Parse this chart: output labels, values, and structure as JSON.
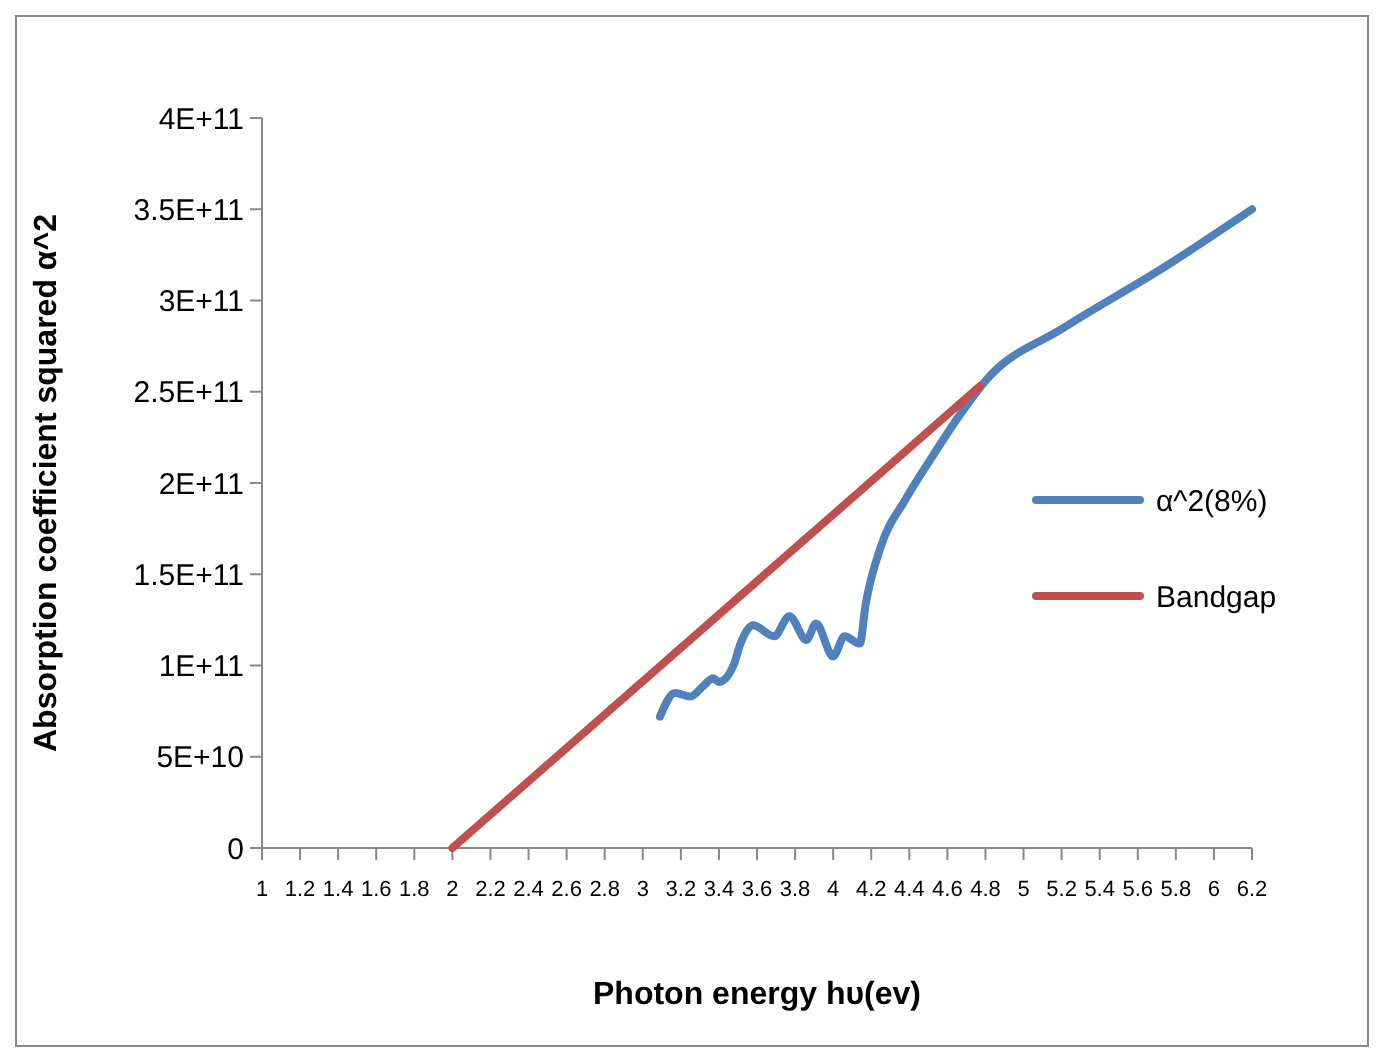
{
  "chart_data": {
    "type": "line",
    "xlabel": "Photon energy hυ(ev)",
    "ylabel": "Absorption coefficient squared α^2",
    "xlim": [
      1,
      6.2
    ],
    "xticks": [
      1,
      1.2,
      1.4,
      1.6,
      1.8,
      2,
      2.2,
      2.4,
      2.6,
      2.8,
      3,
      3.2,
      3.4,
      3.6,
      3.8,
      4,
      4.2,
      4.4,
      4.6,
      4.8,
      5,
      5.2,
      5.4,
      5.6,
      5.8,
      6,
      6.2
    ],
    "ylim": [
      0,
      400000000000
    ],
    "yticks": [
      0,
      {
        "value": 50000000000,
        "label": "5E+10"
      },
      {
        "value": 100000000000,
        "label": "1E+11"
      },
      {
        "value": 150000000000,
        "label": "1.5E+11"
      },
      {
        "value": 200000000000,
        "label": "2E+11"
      },
      {
        "value": 250000000000,
        "label": "2.5E+11"
      },
      {
        "value": 300000000000,
        "label": "3E+11"
      },
      {
        "value": 350000000000,
        "label": "3.5E+11"
      },
      {
        "value": 400000000000,
        "label": "4E+11"
      }
    ],
    "grid": false,
    "legend": "right",
    "marker": "none",
    "line_style": "solid",
    "series": [
      {
        "name": "α^2(8%)",
        "color": "#4f81bd",
        "x": [
          3.09,
          3.17,
          3.25,
          3.32,
          3.37,
          3.4,
          3.48,
          3.51,
          3.58,
          3.69,
          3.77,
          3.86,
          3.91,
          4.0,
          4.06,
          4.14,
          4.17,
          4.25,
          4.38,
          4.53,
          4.67,
          4.8,
          5.21,
          5.72,
          6.2
        ],
        "values": [
          72000000000,
          85000000000,
          83000000000,
          89000000000,
          93000000000,
          91000000000,
          101000000000,
          111000000000,
          122000000000,
          116000000000,
          127000000000,
          114000000000,
          123000000000,
          105000000000,
          116000000000,
          112000000000,
          133000000000,
          165000000000,
          191000000000,
          216000000000,
          238000000000,
          256000000000,
          285000000000,
          317000000000,
          350000000000
        ]
      },
      {
        "name": "Bandgap",
        "color": "#c0504d",
        "x": [
          2.0,
          4.77
        ],
        "values": [
          0,
          253000000000
        ]
      }
    ]
  }
}
